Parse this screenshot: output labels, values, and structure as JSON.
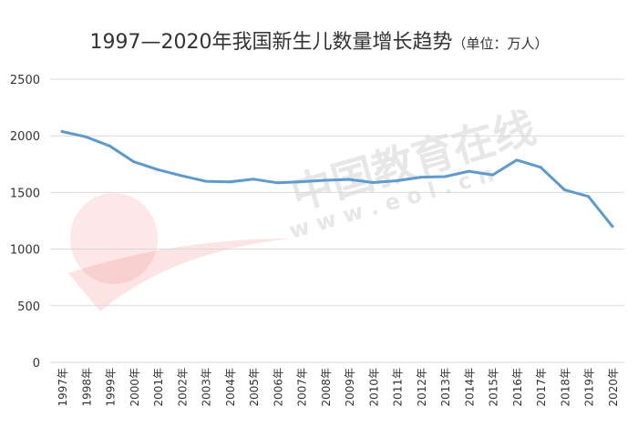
{
  "chart_data": {
    "type": "line",
    "title": "1997—2020年我国新生儿数量增长趋势",
    "subtitle": "（单位：万人）",
    "categories": [
      "1997年",
      "1998年",
      "1999年",
      "2000年",
      "2001年",
      "2002年",
      "2003年",
      "2004年",
      "2005年",
      "2006年",
      "2007年",
      "2008年",
      "2009年",
      "2010年",
      "2011年",
      "2012年",
      "2013年",
      "2014年",
      "2015年",
      "2016年",
      "2017年",
      "2018年",
      "2019年",
      "2020年"
    ],
    "series": [
      {
        "values": [
          2038,
          1991,
          1909,
          1771,
          1702,
          1647,
          1599,
          1593,
          1617,
          1585,
          1595,
          1608,
          1615,
          1588,
          1604,
          1635,
          1640,
          1687,
          1655,
          1786,
          1723,
          1523,
          1465,
          1200
        ]
      }
    ],
    "ylim": [
      0,
      2500
    ],
    "yticks": [
      0,
      500,
      1000,
      1500,
      2000,
      2500
    ],
    "grid": true,
    "legend": "none",
    "colors": {
      "line": "#5b9bd5",
      "grid": "#d9d9d9",
      "text": "#333333"
    }
  },
  "watermark": {
    "text": "中国教育在线",
    "url": "w w w . e o l . c n"
  }
}
